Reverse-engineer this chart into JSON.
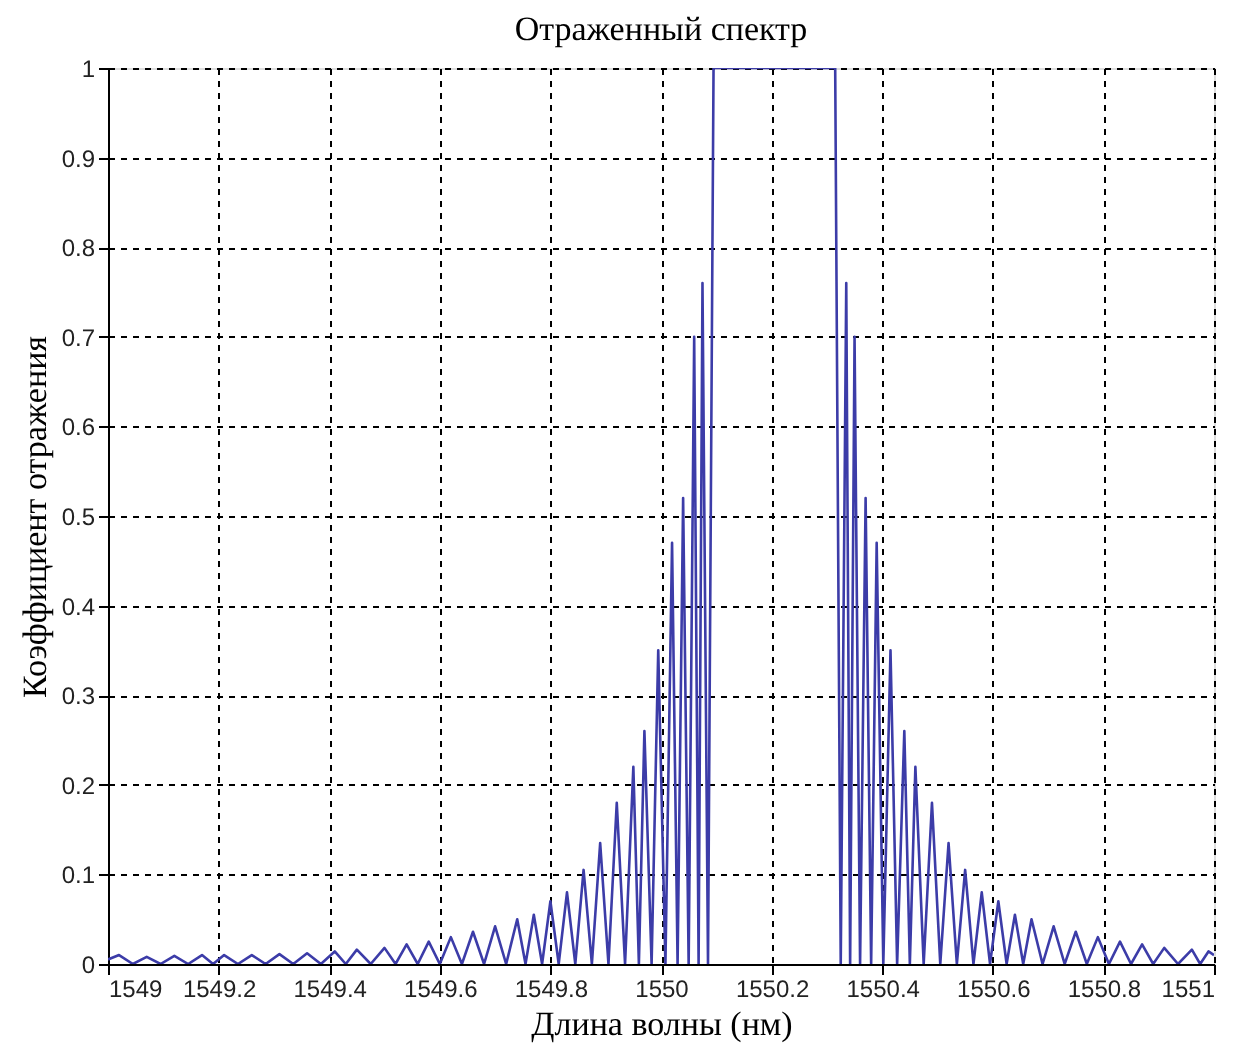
{
  "chart_data": {
    "type": "line",
    "title": "Отраженный спектр",
    "xlabel": "Длина волны (нм)",
    "ylabel": "Коэффициент отражения",
    "x": [
      1549,
      1549.02,
      1549.045,
      1549.07,
      1549.095,
      1549.12,
      1549.145,
      1549.17,
      1549.19,
      1549.21,
      1549.235,
      1549.26,
      1549.285,
      1549.31,
      1549.335,
      1549.36,
      1549.385,
      1549.41,
      1549.43,
      1549.45,
      1549.475,
      1549.5,
      1549.52,
      1549.54,
      1549.56,
      1549.58,
      1549.6,
      1549.62,
      1549.64,
      1549.66,
      1549.68,
      1549.7,
      1549.72,
      1549.74,
      1549.755,
      1549.77,
      1549.785,
      1549.8,
      1549.815,
      1549.83,
      1549.845,
      1549.86,
      1549.875,
      1549.89,
      1549.905,
      1549.92,
      1549.935,
      1549.95,
      1549.96,
      1549.97,
      1549.983,
      1549.995,
      1550.008,
      1550.02,
      1550.03,
      1550.04,
      1550.05,
      1550.06,
      1550.068,
      1550.075,
      1550.085,
      1550.095,
      1550.315,
      1550.325,
      1550.335,
      1550.342,
      1550.35,
      1550.36,
      1550.37,
      1550.38,
      1550.39,
      1550.402,
      1550.415,
      1550.427,
      1550.44,
      1550.45,
      1550.46,
      1550.475,
      1550.49,
      1550.505,
      1550.52,
      1550.535,
      1550.55,
      1550.565,
      1550.58,
      1550.595,
      1550.61,
      1550.625,
      1550.64,
      1550.655,
      1550.67,
      1550.69,
      1550.71,
      1550.73,
      1550.75,
      1550.77,
      1550.79,
      1550.81,
      1550.83,
      1550.85,
      1550.87,
      1550.89,
      1550.91,
      1550.935,
      1550.96,
      1550.975,
      1550.99,
      1551
    ],
    "series": [
      {
        "color": "#3c3ca8",
        "values": [
          0.005,
          0.01,
          0,
          0.008,
          0,
          0.009,
          0,
          0.01,
          0,
          0.01,
          0,
          0.01,
          0,
          0.011,
          0,
          0.012,
          0,
          0.014,
          0,
          0.016,
          0,
          0.018,
          0,
          0.022,
          0,
          0.025,
          0,
          0.03,
          0,
          0.036,
          0,
          0.042,
          0,
          0.05,
          0,
          0.055,
          0,
          0.07,
          0,
          0.08,
          0,
          0.105,
          0,
          0.135,
          0,
          0.18,
          0,
          0.22,
          0,
          0.26,
          0,
          0.35,
          0,
          0.47,
          0,
          0.52,
          0,
          0.7,
          0,
          0.76,
          0,
          1,
          1,
          0,
          0.76,
          0,
          0.7,
          0,
          0.52,
          0,
          0.47,
          0,
          0.35,
          0,
          0.26,
          0,
          0.22,
          0,
          0.18,
          0,
          0.135,
          0,
          0.105,
          0,
          0.08,
          0,
          0.07,
          0,
          0.055,
          0,
          0.05,
          0,
          0.042,
          0,
          0.036,
          0,
          0.03,
          0,
          0.025,
          0,
          0.022,
          0,
          0.018,
          0,
          0.016,
          0,
          0.014,
          0.01
        ]
      }
    ],
    "xlim": [
      1549,
      1551
    ],
    "xticks": [
      1549,
      1549.2,
      1549.4,
      1549.6,
      1549.8,
      1550,
      1550.2,
      1550.4,
      1550.6,
      1550.8,
      1551
    ],
    "ylim": [
      0,
      1
    ],
    "yticks": [
      0,
      0.1,
      0.2,
      0.3,
      0.4,
      0.5,
      0.6,
      0.7,
      0.8,
      0.9,
      1
    ],
    "grid": true,
    "marker": "none",
    "line_style": "solid"
  }
}
